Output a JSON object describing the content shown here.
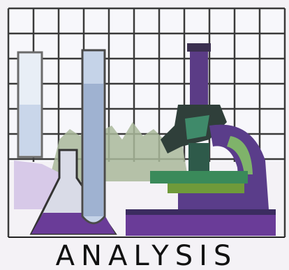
{
  "label": "ANALYSIS"
}
